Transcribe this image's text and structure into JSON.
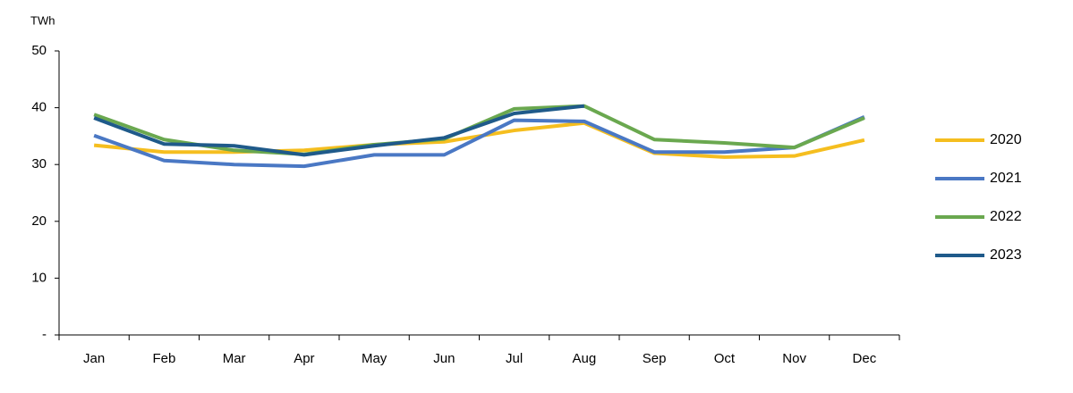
{
  "chart_data": {
    "type": "line",
    "y_axis_label": "TWh",
    "categories": [
      "Jan",
      "Feb",
      "Mar",
      "Apr",
      "May",
      "Jun",
      "Jul",
      "Aug",
      "Sep",
      "Oct",
      "Nov",
      "Dec"
    ],
    "series": [
      {
        "name": "2020",
        "color": "#f5be1f",
        "values": [
          33.4,
          32.2,
          32.2,
          32.5,
          33.5,
          34.0,
          36.0,
          37.3,
          32.0,
          31.3,
          31.5,
          34.3
        ]
      },
      {
        "name": "2021",
        "color": "#4a78c4",
        "values": [
          35.1,
          30.7,
          30.0,
          29.7,
          31.7,
          31.7,
          37.8,
          37.6,
          32.2,
          32.2,
          33.0,
          38.4
        ]
      },
      {
        "name": "2022",
        "color": "#6aa84f",
        "values": [
          38.8,
          34.4,
          32.5,
          31.8,
          33.5,
          34.5,
          39.8,
          40.3,
          34.4,
          33.8,
          33.0,
          38.2
        ]
      },
      {
        "name": "2023",
        "color": "#1f5a8a",
        "values": [
          38.2,
          33.6,
          33.3,
          31.7,
          33.3,
          34.7,
          39.0,
          40.3,
          null,
          null,
          null,
          null
        ]
      }
    ],
    "ylim": [
      0,
      50
    ],
    "yticks": [
      {
        "value": 0,
        "label": "-"
      },
      10,
      20,
      30,
      40,
      50
    ],
    "grid": false,
    "legend": "right"
  }
}
